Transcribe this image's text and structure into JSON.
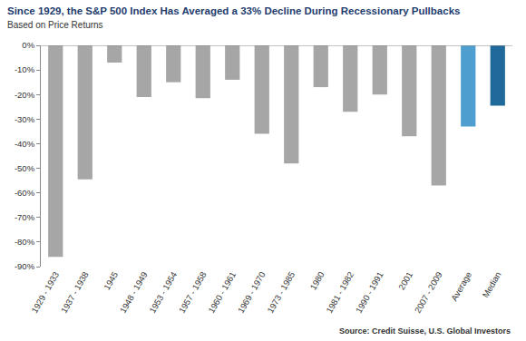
{
  "chart_data": {
    "type": "bar",
    "title": "Since 1929, the S&P 500 Index Has Averaged a 33% Decline During Recessionary Pullbacks",
    "subtitle": "Based on Price Returns",
    "annotations": [
      "Source: Credit Suisse, U.S. Global Investors"
    ],
    "categories": [
      "1929 - 1933",
      "1937 - 1938",
      "1945",
      "1948 - 1949",
      "1953 - 1954",
      "1957 - 1958",
      "1960 - 1961",
      "1969 - 1970",
      "1973 - 1985",
      "1980",
      "1981 - 1982",
      "1990 - 1991",
      "2001",
      "2007 - 2009",
      "Average",
      "Median"
    ],
    "values": [
      -86,
      -54.5,
      -7,
      -21,
      -15,
      -21.5,
      -14,
      -36,
      -48,
      -17,
      -27,
      -20,
      -37,
      -57,
      -33,
      -24.5
    ],
    "colors": [
      "#a6a6a6",
      "#a6a6a6",
      "#a6a6a6",
      "#a6a6a6",
      "#a6a6a6",
      "#a6a6a6",
      "#a6a6a6",
      "#a6a6a6",
      "#a6a6a6",
      "#a6a6a6",
      "#a6a6a6",
      "#a6a6a6",
      "#a6a6a6",
      "#a6a6a6",
      "#4e9fd0",
      "#1f6a9a"
    ],
    "ylim": [
      -90,
      0
    ],
    "yticks": [
      {
        "value": 0,
        "label": "0%"
      },
      {
        "value": -10,
        "label": "-10%"
      },
      {
        "value": -20,
        "label": "-20%"
      },
      {
        "value": -30,
        "label": "-30%"
      },
      {
        "value": -40,
        "label": "-40%"
      },
      {
        "value": -50,
        "label": "-50%"
      },
      {
        "value": -60,
        "label": "-60%"
      },
      {
        "value": -70,
        "label": "-70%"
      },
      {
        "value": -80,
        "label": "-80%"
      },
      {
        "value": -90,
        "label": "-90%"
      }
    ],
    "grid": false
  }
}
